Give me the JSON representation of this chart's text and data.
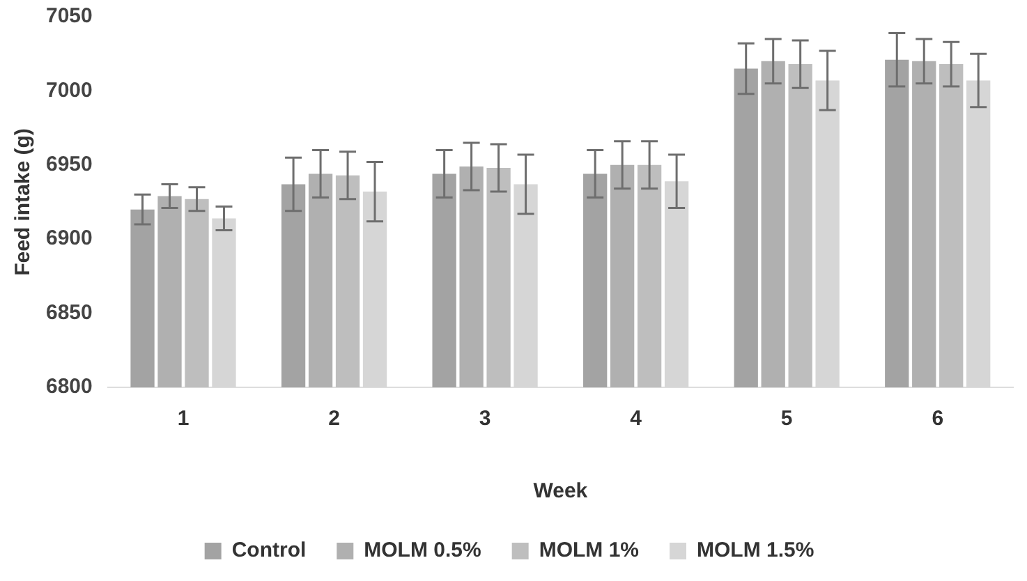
{
  "chart_data": {
    "type": "bar",
    "xlabel": "Week",
    "ylabel": "Feed intake (g)",
    "categories": [
      "1",
      "2",
      "3",
      "4",
      "5",
      "6"
    ],
    "series": [
      {
        "name": "Control",
        "color": "#a3a3a3",
        "values": [
          6920,
          6937,
          6944,
          6944,
          7015,
          7021
        ],
        "errors": [
          10,
          18,
          16,
          16,
          17,
          18
        ]
      },
      {
        "name": "MOLM 0.5%",
        "color": "#b0b0b0",
        "values": [
          6929,
          6944,
          6949,
          6950,
          7020,
          7020
        ],
        "errors": [
          8,
          16,
          16,
          16,
          15,
          15
        ]
      },
      {
        "name": "MOLM 1%",
        "color": "#bebebe",
        "values": [
          6927,
          6943,
          6948,
          6950,
          7018,
          7018
        ],
        "errors": [
          8,
          16,
          16,
          16,
          16,
          15
        ]
      },
      {
        "name": "MOLM 1.5%",
        "color": "#d6d6d6",
        "values": [
          6914,
          6932,
          6937,
          6939,
          7007,
          7007
        ],
        "errors": [
          8,
          20,
          20,
          18,
          20,
          18
        ]
      }
    ],
    "ylim": [
      6800,
      7050
    ],
    "yticks": [
      6800,
      6850,
      6900,
      6950,
      7000,
      7050
    ],
    "grid": false,
    "legend": "bottom"
  }
}
